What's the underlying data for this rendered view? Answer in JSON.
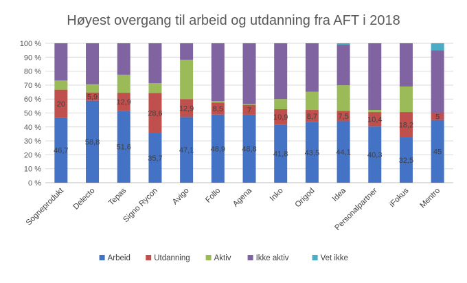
{
  "chart_data": {
    "type": "bar",
    "stacked": true,
    "percent": true,
    "title": "Høyest overgang til arbeid og utdanning fra AFT i 2018",
    "xlabel": "",
    "ylabel": "",
    "ylim": [
      0,
      100
    ],
    "yticks": [
      "0 %",
      "10 %",
      "20 %",
      "30 %",
      "40 %",
      "50 %",
      "60 %",
      "70 %",
      "80 %",
      "90 %",
      "100 %"
    ],
    "grid": true,
    "legend_position": "bottom",
    "categories": [
      "Sogneprodukt",
      "Delecto",
      "Tepas",
      "Signo Rycon",
      "Avigo",
      "Follo",
      "Agena",
      "Inko",
      "Origod",
      "Idea",
      "Personalpartner",
      "iFokus",
      "Mentro"
    ],
    "series": [
      {
        "name": "Arbeid",
        "color": "#4472C4",
        "values": [
          46.7,
          58.8,
          51.6,
          35.7,
          47.1,
          48.9,
          48.8,
          41.8,
          43.5,
          44.1,
          40.3,
          32.5,
          45
        ],
        "labels": [
          "46,7",
          "58,8",
          "51,6",
          "35,7",
          "47,1",
          "48,9",
          "48,8",
          "41,8",
          "43,5",
          "44,1",
          "40,3",
          "32,5",
          "45"
        ]
      },
      {
        "name": "Utdanning",
        "color": "#C0504D",
        "values": [
          20,
          5.9,
          12.9,
          28.6,
          12.9,
          8.5,
          7,
          10.9,
          8.7,
          7.5,
          10.4,
          18.2,
          5
        ],
        "labels": [
          "20",
          "5,9",
          "12,9",
          "28,6",
          "12,9",
          "8,5",
          "7",
          "10,9",
          "8,7",
          "7,5",
          "10,4",
          "18,2",
          "5"
        ]
      },
      {
        "name": "Aktiv",
        "color": "#9BBB59",
        "values": [
          6.7,
          5.9,
          12.9,
          7.1,
          28.2,
          1.1,
          0.5,
          7.3,
          13,
          18.3,
          1.5,
          18.3,
          0
        ],
        "labels": []
      },
      {
        "name": "Ikke aktiv",
        "color": "#8064A2",
        "values": [
          26.6,
          29.4,
          22.6,
          28.6,
          11.8,
          41.5,
          43.7,
          40,
          34.8,
          29.1,
          47.8,
          31,
          45
        ],
        "labels": []
      },
      {
        "name": "Vet ikke",
        "color": "#4BACC6",
        "values": [
          0,
          0,
          0,
          0,
          0,
          0,
          0,
          0,
          0,
          1,
          0,
          0,
          5
        ],
        "labels": []
      }
    ]
  }
}
